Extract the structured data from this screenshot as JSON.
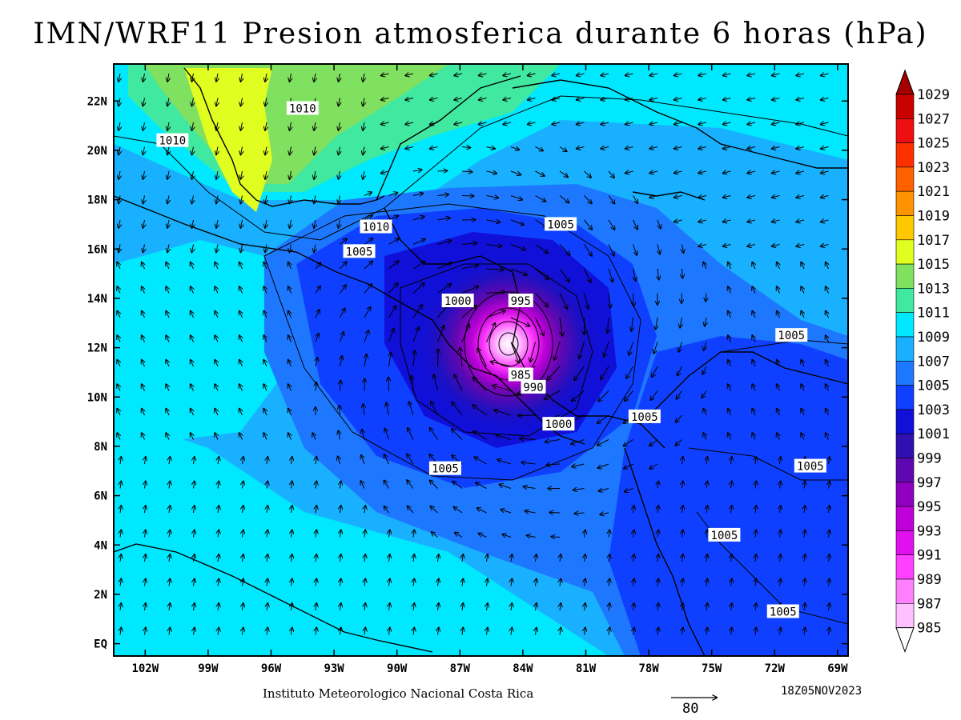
{
  "title": "IMN/WRF11 Presion atmosferica durante 6 horas (hPa)",
  "footer": {
    "institution": "Instituto Meteorologico Nacional Costa Rica",
    "timestamp": "18Z05NOV2023",
    "reference_vector": "80"
  },
  "axes": {
    "longitude_labels": [
      "102W",
      "99W",
      "96W",
      "93W",
      "90W",
      "87W",
      "84W",
      "81W",
      "78W",
      "75W",
      "72W",
      "69W"
    ],
    "latitude_labels": [
      "22N",
      "20N",
      "18N",
      "16N",
      "14N",
      "12N",
      "10N",
      "8N",
      "6N",
      "4N",
      "2N",
      "EQ"
    ]
  },
  "colorbar": {
    "levels": [
      "1029",
      "1027",
      "1025",
      "1023",
      "1021",
      "1019",
      "1017",
      "1015",
      "1013",
      "1011",
      "1009",
      "1007",
      "1005",
      "1003",
      "1001",
      "999",
      "997",
      "995",
      "993",
      "991",
      "989",
      "987",
      "985"
    ],
    "colors": [
      "#a50000",
      "#c80000",
      "#ee1010",
      "#ff3000",
      "#ff6000",
      "#ff9400",
      "#ffc800",
      "#e0ff20",
      "#80e060",
      "#40e8a0",
      "#00e8ff",
      "#18b0ff",
      "#1e78ff",
      "#1040ff",
      "#1010d8",
      "#3010b0",
      "#6008b0",
      "#9000c0",
      "#c000d8",
      "#e010f0",
      "#ff40ff",
      "#ff80ff",
      "#ffc0ff"
    ]
  },
  "contour_labels": [
    {
      "text": "1010",
      "lon": 94.5,
      "lat": 21.7
    },
    {
      "text": "1010",
      "lon": 100.7,
      "lat": 20.4
    },
    {
      "text": "1010",
      "lon": 91.0,
      "lat": 16.9
    },
    {
      "text": "1005",
      "lon": 91.8,
      "lat": 15.9
    },
    {
      "text": "1005",
      "lon": 82.2,
      "lat": 17.0
    },
    {
      "text": "1000",
      "lon": 87.1,
      "lat": 13.9
    },
    {
      "text": "995",
      "lon": 84.1,
      "lat": 13.9
    },
    {
      "text": "985",
      "lon": 84.1,
      "lat": 10.9
    },
    {
      "text": "990",
      "lon": 83.5,
      "lat": 10.4
    },
    {
      "text": "1000",
      "lon": 82.3,
      "lat": 8.9
    },
    {
      "text": "1005",
      "lon": 78.2,
      "lat": 9.2
    },
    {
      "text": "1005",
      "lon": 87.7,
      "lat": 7.1
    },
    {
      "text": "1005",
      "lon": 71.2,
      "lat": 12.5
    },
    {
      "text": "1005",
      "lon": 70.3,
      "lat": 7.2
    },
    {
      "text": "1005",
      "lon": 74.4,
      "lat": 4.4
    },
    {
      "text": "1005",
      "lon": 71.6,
      "lat": 1.3
    }
  ]
}
